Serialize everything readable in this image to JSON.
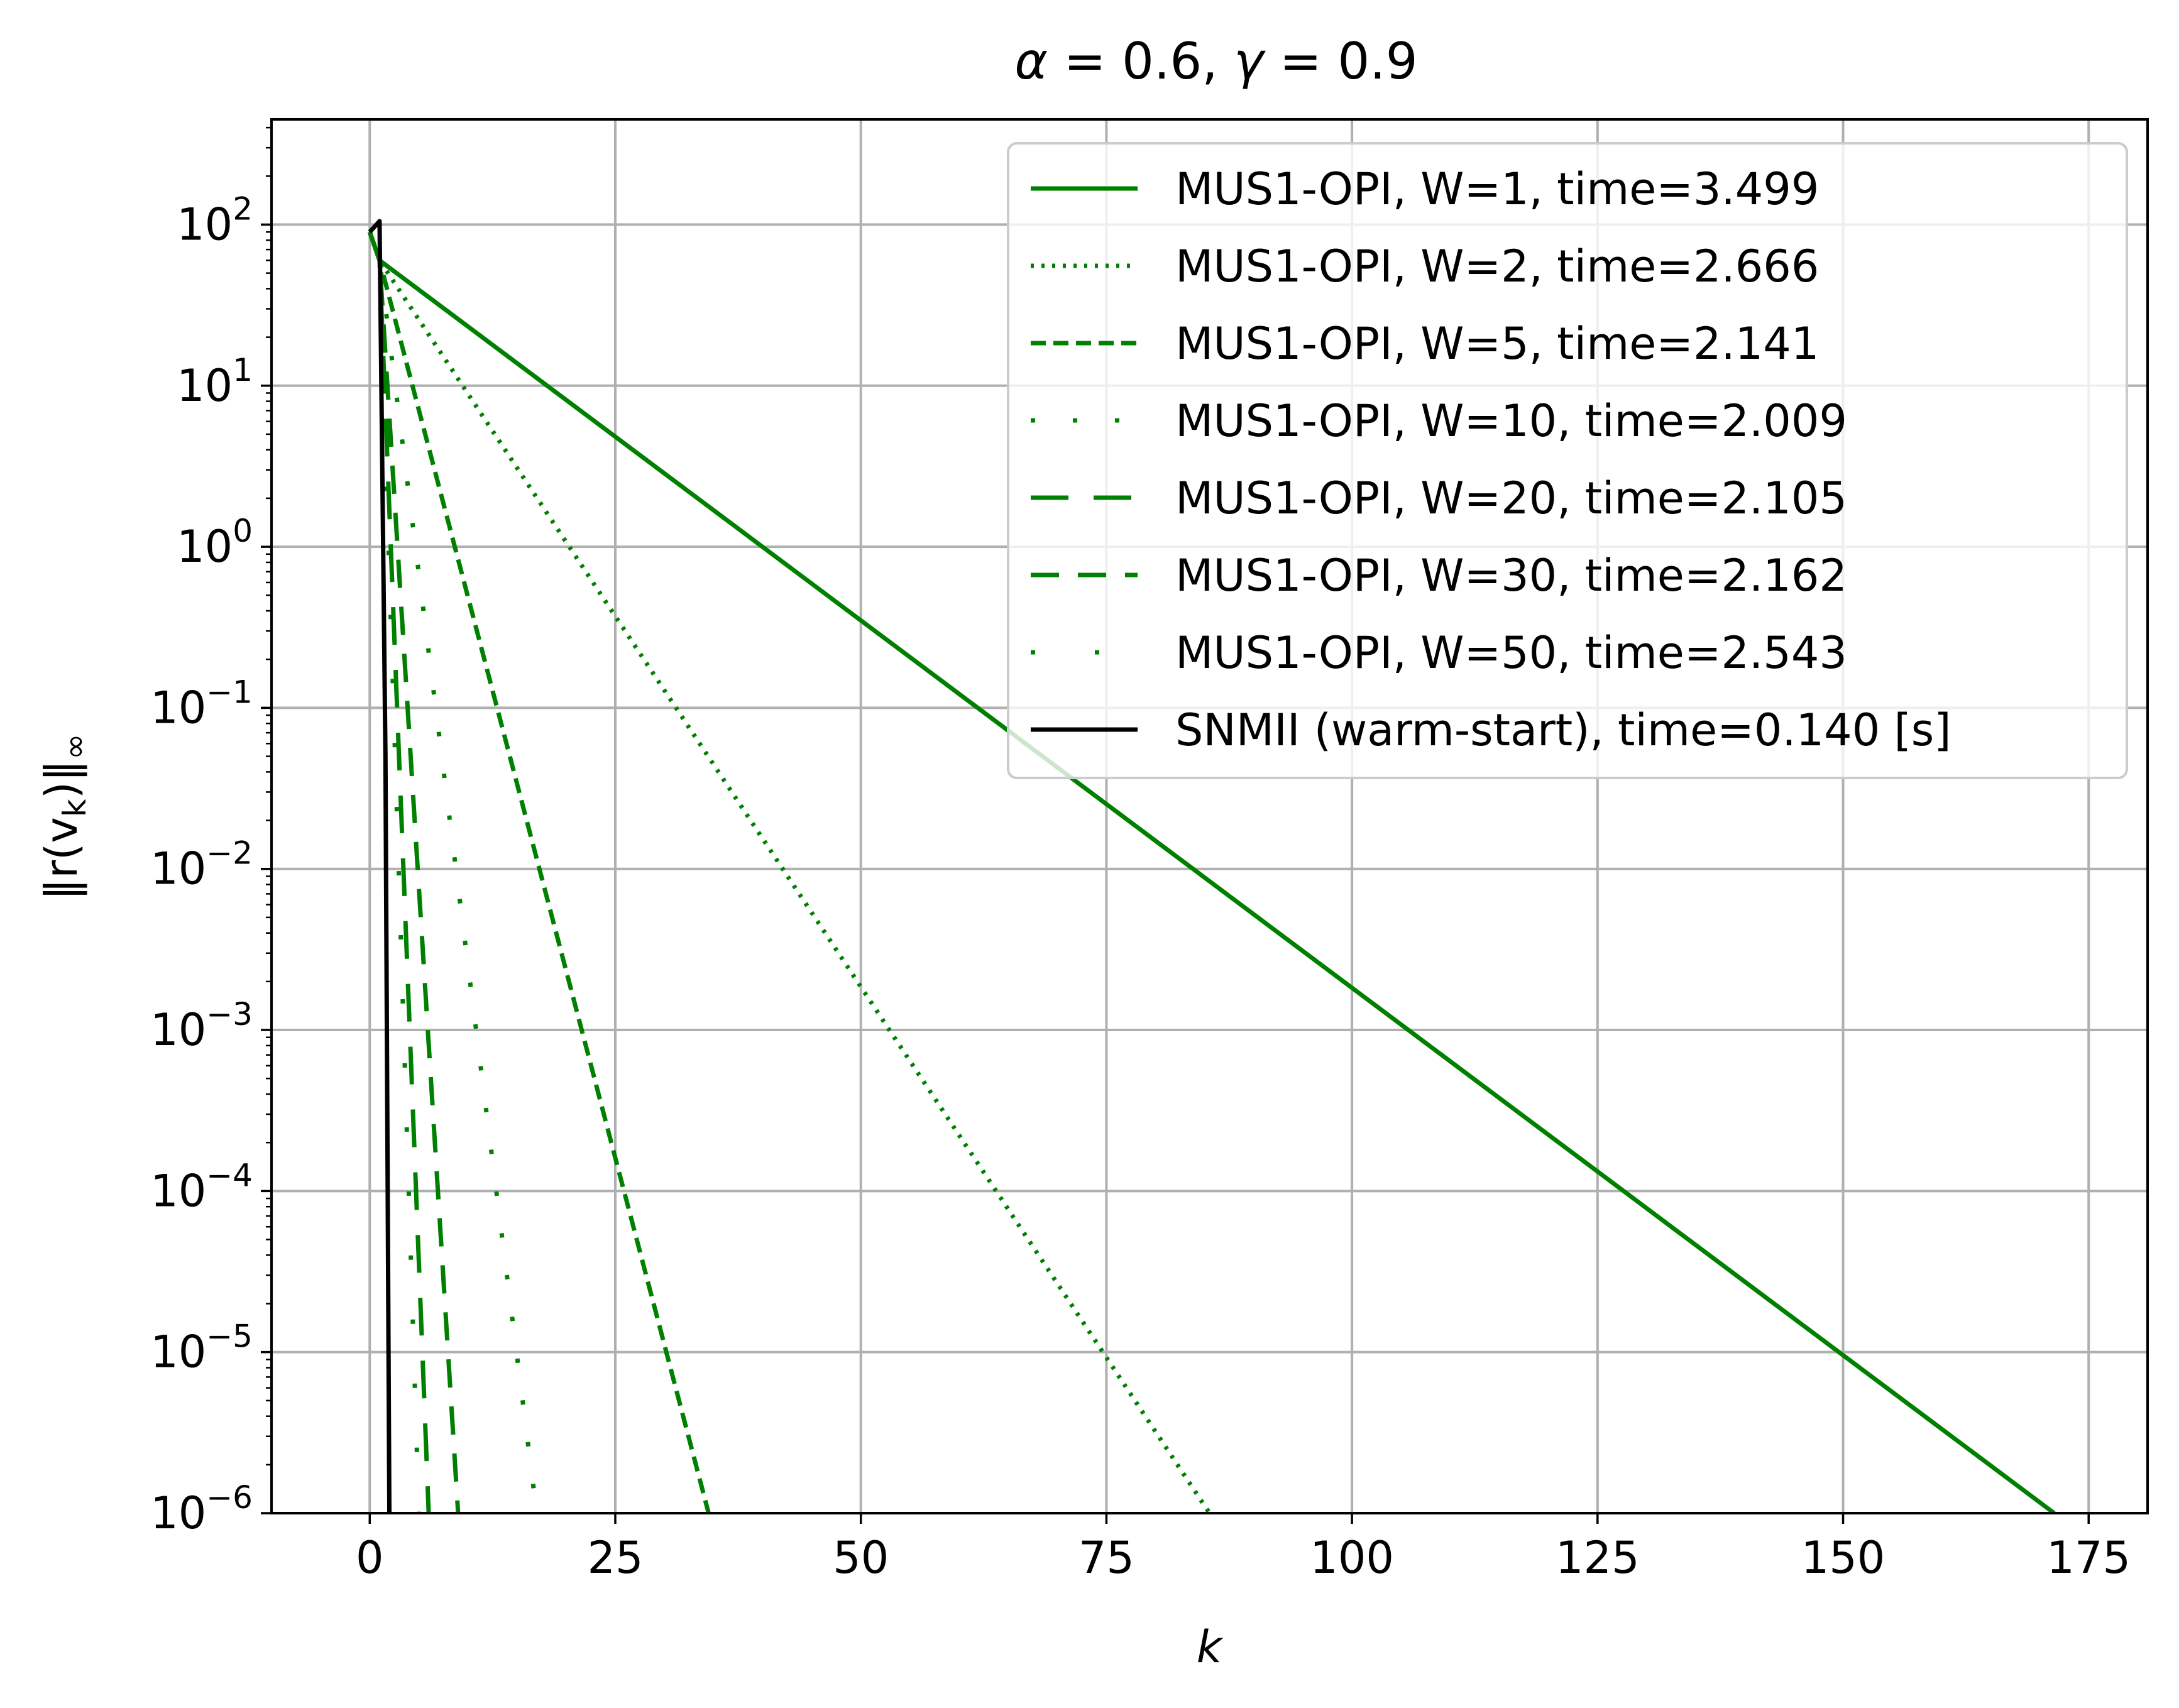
{
  "chart_data": {
    "type": "line",
    "title": "α = 0.6,  γ = 0.9",
    "title_parts": {
      "alpha": "α",
      "alpha_val": " = 0.6, ",
      "gamma": "γ",
      "gamma_val": " = 0.9"
    },
    "xlabel": "k",
    "ylabel": "‖r(v",
    "ylabel_sub": "k",
    "ylabel_tail": ")‖",
    "ylabel_inf": "∞",
    "xlim": [
      -10,
      181
    ],
    "ylim": [
      1e-06,
      450
    ],
    "yscale": "log",
    "grid": true,
    "legend_position": "upper right",
    "xticks": [
      {
        "value": 0,
        "label": "0"
      },
      {
        "value": 25,
        "label": "25"
      },
      {
        "value": 50,
        "label": "50"
      },
      {
        "value": 75,
        "label": "75"
      },
      {
        "value": 100,
        "label": "100"
      },
      {
        "value": 125,
        "label": "125"
      },
      {
        "value": 150,
        "label": "150"
      },
      {
        "value": 175,
        "label": "175"
      }
    ],
    "yticks": [
      {
        "value": 100,
        "base": "10",
        "exp": "2"
      },
      {
        "value": 10,
        "base": "10",
        "exp": "1"
      },
      {
        "value": 1,
        "base": "10",
        "exp": "0"
      },
      {
        "value": 0.1,
        "base": "10",
        "exp": "−1"
      },
      {
        "value": 0.01,
        "base": "10",
        "exp": "−2"
      },
      {
        "value": 0.001,
        "base": "10",
        "exp": "−3"
      },
      {
        "value": 0.0001,
        "base": "10",
        "exp": "−4"
      },
      {
        "value": 1e-05,
        "base": "10",
        "exp": "−5"
      },
      {
        "value": 1e-06,
        "base": "10",
        "exp": "−6"
      }
    ],
    "series": [
      {
        "name": "MUS1-OPI, W=1, time=3.499",
        "color": "#008000",
        "style": "solid",
        "x": [
          0,
          1,
          171.5
        ],
        "y": [
          90,
          60,
          1e-06
        ]
      },
      {
        "name": "MUS1-OPI, W=2, time=2.666",
        "color": "#008000",
        "style": "dotted",
        "x": [
          0,
          1,
          85.5
        ],
        "y": [
          90,
          60,
          1e-06
        ]
      },
      {
        "name": "MUS1-OPI, W=5, time=2.141",
        "color": "#008000",
        "style": "dashed",
        "x": [
          0,
          1,
          34.5
        ],
        "y": [
          90,
          60,
          1e-06
        ]
      },
      {
        "name": "MUS1-OPI, W=10, time=2.009",
        "color": "#008000",
        "style": "loosely-dotted",
        "x": [
          0,
          1,
          17
        ],
        "y": [
          90,
          60,
          1e-06
        ]
      },
      {
        "name": "MUS1-OPI, W=20, time=2.105",
        "color": "#008000",
        "style": "long-dash",
        "x": [
          0,
          1,
          6
        ],
        "y": [
          90,
          60,
          1e-06
        ]
      },
      {
        "name": "MUS1-OPI, W=30, time=2.162",
        "color": "#008000",
        "style": "dash-gap",
        "x": [
          0,
          1,
          9
        ],
        "y": [
          90,
          60,
          1e-06
        ]
      },
      {
        "name": "MUS1-OPI, W=50, time=2.543",
        "color": "#008000",
        "style": "sparse-dotted",
        "x": [
          0,
          1,
          5
        ],
        "y": [
          90,
          60,
          1e-06
        ]
      },
      {
        "name": "SNMII (warm-start), time=0.140 [s]",
        "color": "#000000",
        "style": "solid",
        "x": [
          0,
          1,
          1.6,
          2
        ],
        "y": [
          90,
          105,
          0.05,
          1e-06
        ]
      }
    ]
  }
}
